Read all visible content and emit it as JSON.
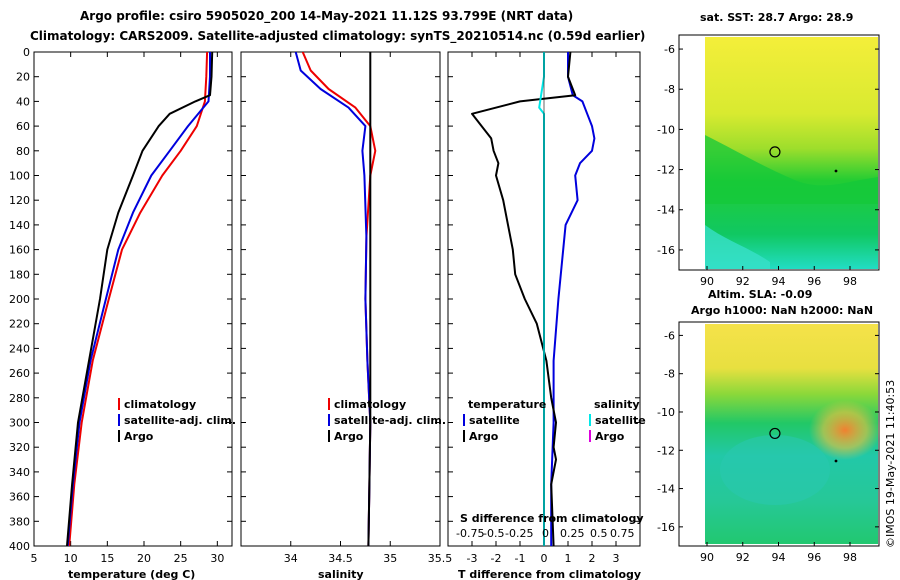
{
  "title_line1": "Argo profile: csiro 5905020_200 14-May-2021 11.12S 93.799E (NRT data)",
  "title_line2": "Climatology: CARS2009. Satellite-adjusted climatology: synTS_20210514.nc (0.59d earlier)",
  "credit": "©IMOS 19-May-2021 11:40:53",
  "colors": {
    "climatology": "#ee0000",
    "satellite": "#0000dd",
    "argo": "#000000",
    "sal_diff": "#00e8e8",
    "sal_legend_argo": "#dd00dd"
  },
  "chart_data": [
    {
      "type": "line",
      "id": "temperature",
      "xlabel": "temperature (deg C)",
      "xlim": [
        5,
        32
      ],
      "xticks": [
        5,
        10,
        15,
        20,
        25,
        30
      ],
      "ylim": [
        0,
        400
      ],
      "yticks": [
        0,
        20,
        40,
        60,
        80,
        100,
        120,
        140,
        160,
        180,
        200,
        220,
        240,
        260,
        280,
        300,
        320,
        340,
        360,
        380,
        400
      ],
      "legend": [
        "climatology",
        "satellite-adj. clim.",
        "Argo"
      ],
      "series": [
        {
          "name": "climatology",
          "depth": [
            0,
            20,
            40,
            60,
            80,
            100,
            130,
            160,
            200,
            250,
            300,
            350,
            400
          ],
          "values": [
            28.6,
            28.5,
            28.3,
            27.2,
            25.0,
            22.5,
            19.5,
            17.0,
            15.2,
            13.0,
            11.5,
            10.5,
            9.8
          ]
        },
        {
          "name": "satellite-adj. clim.",
          "depth": [
            0,
            20,
            40,
            60,
            80,
            100,
            130,
            160,
            200,
            250,
            300,
            350,
            400
          ],
          "values": [
            29.0,
            29.0,
            28.8,
            26.0,
            23.5,
            21.0,
            18.5,
            16.5,
            14.8,
            12.7,
            11.2,
            10.3,
            9.6
          ]
        },
        {
          "name": "Argo",
          "depth": [
            0,
            20,
            35,
            40,
            50,
            60,
            80,
            100,
            130,
            160,
            200,
            250,
            300,
            350,
            400
          ],
          "values": [
            29.3,
            29.2,
            29.0,
            27.0,
            23.5,
            22.0,
            19.8,
            18.5,
            16.5,
            15.0,
            14.0,
            12.5,
            11.0,
            10.2,
            9.5
          ]
        }
      ]
    },
    {
      "type": "line",
      "id": "salinity",
      "xlabel": "salinity",
      "xlim": [
        33.5,
        35.5
      ],
      "xticks": [
        34,
        34.5,
        35,
        35.5
      ],
      "ylim": [
        0,
        400
      ],
      "legend": [
        "climatology",
        "satellite-adj. clim.",
        "Argo"
      ],
      "series": [
        {
          "name": "climatology",
          "depth": [
            0,
            15,
            30,
            45,
            60,
            80,
            100,
            150,
            200,
            250,
            300,
            350,
            400
          ],
          "values": [
            34.12,
            34.2,
            34.38,
            34.65,
            34.8,
            34.85,
            34.8,
            34.76,
            34.75,
            34.77,
            34.8,
            34.79,
            34.78
          ]
        },
        {
          "name": "satellite-adj. clim.",
          "depth": [
            0,
            15,
            30,
            45,
            60,
            80,
            100,
            150,
            200,
            250,
            300,
            350,
            400
          ],
          "values": [
            34.05,
            34.1,
            34.3,
            34.58,
            34.75,
            34.72,
            34.74,
            34.76,
            34.75,
            34.77,
            34.8,
            34.79,
            34.78
          ]
        },
        {
          "name": "Argo",
          "depth": [
            0,
            20,
            40,
            60,
            80,
            100,
            150,
            200,
            250,
            300,
            350,
            400
          ],
          "values": [
            34.8,
            34.8,
            34.8,
            34.8,
            34.8,
            34.8,
            34.8,
            34.8,
            34.8,
            34.8,
            34.79,
            34.78
          ]
        }
      ]
    },
    {
      "type": "line",
      "id": "difference",
      "xlabel": "T difference from climatology",
      "xlim": [
        -4,
        4
      ],
      "xticks": [
        -3,
        -2,
        -1,
        0,
        1,
        2,
        3
      ],
      "s_xlabel": "S difference from climatology",
      "s_xticks": [
        "-0.75",
        "-0.5",
        "-0.25",
        "0",
        "0.25",
        "0.5",
        "0.75"
      ],
      "ylim": [
        0,
        400
      ],
      "legend_temperature_title": "temperature",
      "legend_salinity_title": "salinity",
      "legend_temperature": [
        "satellite",
        "Argo"
      ],
      "legend_salinity": [
        "satellite",
        "Argo"
      ],
      "series": [
        {
          "name": "T satellite",
          "depth": [
            0,
            20,
            35,
            40,
            50,
            60,
            70,
            80,
            90,
            100,
            120,
            140,
            160,
            200,
            250,
            300,
            350,
            400
          ],
          "values": [
            1.0,
            1.0,
            1.2,
            1.6,
            1.8,
            2.0,
            2.1,
            2.0,
            1.5,
            1.3,
            1.4,
            0.9,
            0.8,
            0.6,
            0.4,
            0.4,
            0.3,
            0.3
          ]
        },
        {
          "name": "T Argo",
          "depth": [
            0,
            20,
            35,
            40,
            50,
            70,
            80,
            90,
            100,
            120,
            140,
            160,
            180,
            200,
            220,
            250,
            280,
            300,
            320,
            330,
            350,
            400
          ],
          "values": [
            1.1,
            1.0,
            1.3,
            -1.0,
            -3.0,
            -2.2,
            -2.1,
            -1.9,
            -2.0,
            -1.7,
            -1.5,
            -1.3,
            -1.2,
            -0.8,
            -0.3,
            0.1,
            0.3,
            0.5,
            0.4,
            0.5,
            0.3,
            0.4
          ]
        },
        {
          "name": "S satellite",
          "depth": [
            0,
            20,
            35,
            45,
            50,
            60,
            70,
            100,
            150,
            200,
            250,
            300,
            350,
            400
          ],
          "values": [
            0.0,
            0.0,
            -0.03,
            -0.05,
            0.0,
            0.0,
            0.0,
            0.0,
            0.0,
            0.0,
            0.0,
            0.0,
            0.0,
            0.0
          ]
        }
      ]
    },
    {
      "type": "heatmap",
      "id": "sst_map",
      "title": "sat. SST: 28.7 Argo: 28.9",
      "xlim": [
        89,
        99
      ],
      "xticks": [
        90,
        92,
        94,
        96,
        98
      ],
      "ylim": [
        -17,
        -5.3
      ],
      "yticks": [
        -6,
        -8,
        -10,
        -12,
        -14,
        -16
      ],
      "argo_position": [
        93.8,
        -11.12
      ]
    },
    {
      "type": "heatmap",
      "id": "sla_map",
      "title": "Altim. SLA: -0.09",
      "title2": "Argo h1000: NaN h2000: NaN",
      "xlim": [
        89,
        99
      ],
      "xticks": [
        90,
        92,
        94,
        96,
        98
      ],
      "ylim": [
        -17,
        -5.3
      ],
      "yticks": [
        -6,
        -8,
        -10,
        -12,
        -14,
        -16
      ],
      "argo_position": [
        93.8,
        -11.12
      ]
    }
  ]
}
